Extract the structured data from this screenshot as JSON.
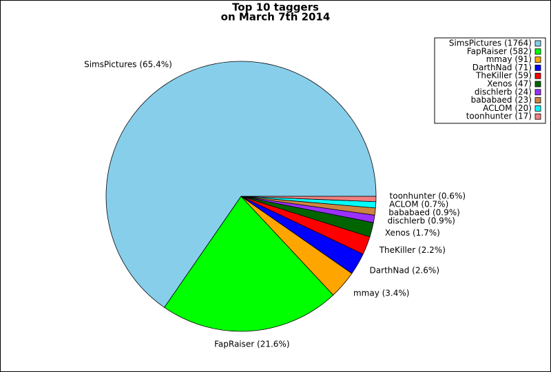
{
  "chart_data": {
    "type": "pie",
    "title": "Top 10 taggers",
    "subtitle": "on March 7th 2014",
    "categories": [
      "SimsPictures",
      "FapRaiser",
      "mmay",
      "DarthNad",
      "TheKiller",
      "Xenos",
      "dischlerb",
      "bababaed",
      "ACLOM",
      "toonhunter"
    ],
    "values": [
      1764,
      582,
      91,
      71,
      59,
      47,
      24,
      23,
      20,
      17
    ],
    "value_labels": [
      "SimsPictures (1764)",
      "FapRaiser (582)",
      "mmay (91)",
      "DarthNad (71)",
      "TheKiller (59)",
      "Xenos (47)",
      "dischlerb (24)",
      "bababaed (23)",
      "ACLOM (20)",
      "toonhunter (17)"
    ],
    "slice_labels": [
      "SimsPictures (65.4%)",
      "FapRaiser (21.6%)",
      "mmay (3.4%)",
      "DarthNad (2.6%)",
      "TheKiller (2.2%)",
      "Xenos (1.7%)",
      "dischlerb (0.9%)",
      "bababaed (0.9%)",
      "ACLOM (0.7%)",
      "toonhunter (0.6%)"
    ],
    "colors": [
      "#87ceeb",
      "#00ff00",
      "#ffa500",
      "#0000ff",
      "#ff0000",
      "#006400",
      "#9b30ff",
      "#cd853f",
      "#00ffff",
      "#f08080"
    ],
    "legend": "upper right"
  }
}
